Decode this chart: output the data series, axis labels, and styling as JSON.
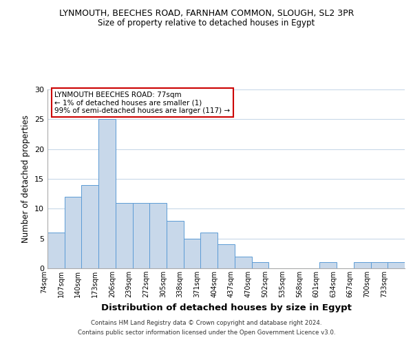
{
  "title_line1": "LYNMOUTH, BEECHES ROAD, FARNHAM COMMON, SLOUGH, SL2 3PR",
  "title_line2": "Size of property relative to detached houses in Egypt",
  "xlabel": "Distribution of detached houses by size in Egypt",
  "ylabel": "Number of detached properties",
  "bar_color": "#c8d8ea",
  "bar_edge_color": "#5b9bd5",
  "bin_labels": [
    "74sqm",
    "107sqm",
    "140sqm",
    "173sqm",
    "206sqm",
    "239sqm",
    "272sqm",
    "305sqm",
    "338sqm",
    "371sqm",
    "404sqm",
    "437sqm",
    "470sqm",
    "502sqm",
    "535sqm",
    "568sqm",
    "601sqm",
    "634sqm",
    "667sqm",
    "700sqm",
    "733sqm"
  ],
  "bar_heights": [
    6,
    12,
    14,
    25,
    11,
    11,
    11,
    8,
    5,
    6,
    4,
    2,
    1,
    0,
    0,
    0,
    1,
    0,
    1,
    1,
    1
  ],
  "ylim": [
    0,
    30
  ],
  "yticks": [
    0,
    5,
    10,
    15,
    20,
    25,
    30
  ],
  "annotation_line1": "LYNMOUTH BEECHES ROAD: 77sqm",
  "annotation_line2": "← 1% of detached houses are smaller (1)",
  "annotation_line3": "99% of semi-detached houses are larger (117) →",
  "annotation_box_color": "#ffffff",
  "annotation_box_edge_color": "#cc0000",
  "footer_line1": "Contains HM Land Registry data © Crown copyright and database right 2024.",
  "footer_line2": "Contains public sector information licensed under the Open Government Licence v3.0.",
  "background_color": "#ffffff",
  "grid_color": "#c8d8e8"
}
